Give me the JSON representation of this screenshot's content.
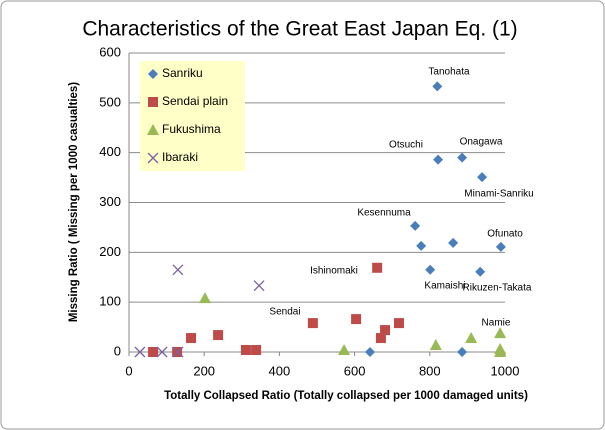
{
  "chart_data": {
    "type": "scatter",
    "title": "Characteristics of the Great East Japan Eq. (1)",
    "x_label": "Totally Collapsed Ratio (Totally collapsed per 1000 damaged units)",
    "y_label": "Missing   Ratio (  Missing per 1000 casualties)",
    "xlim": [
      0,
      1000
    ],
    "xticks": [
      0,
      200,
      400,
      600,
      800,
      1000
    ],
    "ylim": [
      0,
      600
    ],
    "yticks": [
      0,
      100,
      200,
      300,
      400,
      500,
      600
    ],
    "grid": true,
    "legend": "upper left",
    "series": [
      {
        "name": "Sanriku",
        "color": "#4a7ebb",
        "marker": "diamond",
        "x": [
          820,
          822,
          886,
          939,
          761,
          777,
          862,
          989,
          801,
          934,
          641,
          886
        ],
        "values": [
          533,
          386,
          390,
          351,
          253,
          213,
          219,
          211,
          165,
          161,
          0,
          0
        ]
      },
      {
        "name": "Sendai plain",
        "color": "#be4b48",
        "marker": "square",
        "x": [
          64,
          128,
          165,
          237,
          311,
          338,
          489,
          604,
          660,
          670,
          681,
          718
        ],
        "values": [
          0,
          0,
          28,
          34,
          4,
          4,
          58,
          66,
          169,
          28,
          44,
          58
        ]
      },
      {
        "name": "Fukushima",
        "color": "#98b954",
        "marker": "triangle",
        "x": [
          202,
          572,
          816,
          910,
          987,
          987,
          987
        ],
        "values": [
          108,
          4,
          14,
          28,
          38,
          6,
          0
        ]
      },
      {
        "name": "Ibaraki",
        "color": "#7d60a0",
        "marker": "x",
        "x": [
          130,
          346,
          29,
          88,
          130
        ],
        "values": [
          165,
          133,
          0,
          0,
          0
        ]
      }
    ],
    "annotations": [
      "Tanohata",
      "Otsuchi",
      "Onagawa",
      "Minami-Sanriku",
      "Kesennuma",
      "Ofunato",
      "Ishinomaki",
      "Kamaishi",
      "Rikuzen-Takata",
      "Sendai",
      "Namie"
    ]
  }
}
